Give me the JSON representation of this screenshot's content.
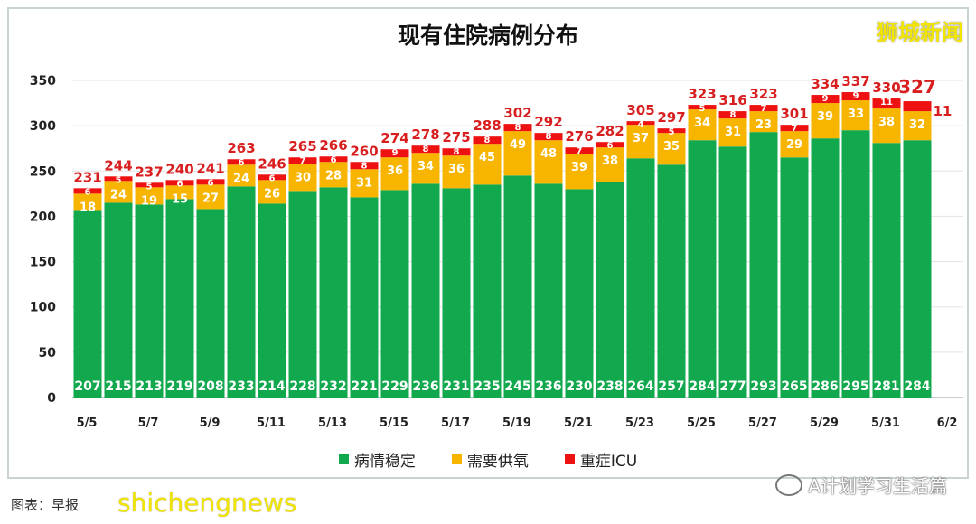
{
  "chart_data": {
    "type": "bar",
    "stacked": true,
    "title": "现有住院病例分布",
    "categories": [
      "5/5",
      "5/6",
      "5/7",
      "5/8",
      "5/9",
      "5/10",
      "5/11",
      "5/12",
      "5/13",
      "5/14",
      "5/15",
      "5/16",
      "5/17",
      "5/18",
      "5/19",
      "5/20",
      "5/21",
      "5/22",
      "5/23",
      "5/24",
      "5/25",
      "5/26",
      "5/27",
      "5/28",
      "5/29",
      "5/30",
      "5/31",
      "6/1"
    ],
    "x_tick_labels": [
      "5/5",
      "5/7",
      "5/9",
      "5/11",
      "5/13",
      "5/15",
      "5/17",
      "5/19",
      "5/21",
      "5/23",
      "5/25",
      "5/27",
      "5/29",
      "5/31",
      "6/2"
    ],
    "series": [
      {
        "name": "病情稳定",
        "color": "#11a84e",
        "values": [
          207,
          215,
          213,
          219,
          208,
          233,
          214,
          228,
          232,
          221,
          229,
          236,
          231,
          235,
          245,
          236,
          230,
          238,
          264,
          257,
          284,
          277,
          293,
          265,
          286,
          295,
          281,
          284
        ]
      },
      {
        "name": "需要供氧",
        "color": "#f7b500",
        "values": [
          18,
          24,
          19,
          15,
          27,
          24,
          26,
          30,
          28,
          31,
          36,
          34,
          36,
          45,
          49,
          48,
          39,
          38,
          37,
          35,
          34,
          31,
          23,
          29,
          39,
          33,
          38,
          32
        ]
      },
      {
        "name": "重症ICU",
        "color": "#ee1111",
        "values": [
          6,
          5,
          5,
          6,
          6,
          6,
          6,
          7,
          6,
          8,
          9,
          8,
          8,
          8,
          8,
          8,
          7,
          6,
          4,
          5,
          5,
          8,
          7,
          7,
          9,
          9,
          11,
          11
        ]
      }
    ],
    "totals": [
      231,
      244,
      237,
      240,
      241,
      263,
      246,
      265,
      266,
      260,
      274,
      278,
      275,
      288,
      302,
      292,
      276,
      282,
      305,
      297,
      323,
      316,
      323,
      301,
      334,
      337,
      330,
      327
    ],
    "ylim": [
      0,
      350
    ],
    "y_ticks": [
      0,
      50,
      100,
      150,
      200,
      250,
      300,
      350
    ],
    "grid": true,
    "legend_position": "bottom",
    "total_label_color": "#d81e1e"
  },
  "watermarks": {
    "top_right": "狮城新闻",
    "bottom_left": "shichengnews",
    "bottom_right": "A计划学习生活篇"
  },
  "caption": "图表：早报"
}
